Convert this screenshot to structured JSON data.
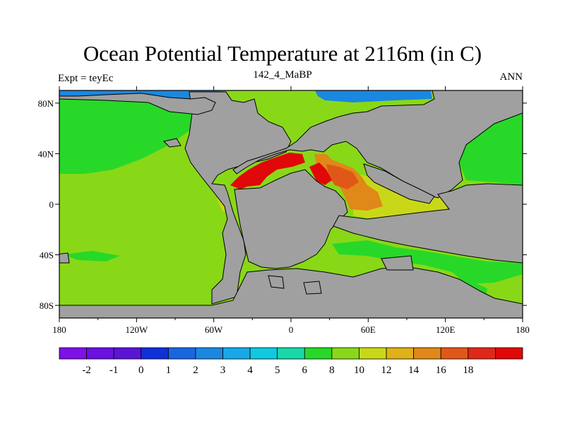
{
  "title": "Ocean Potential Temperature at 2116m (in C)",
  "left_string": "Expt = teyEc",
  "center_string": "142_4_MaBP",
  "right_string": "ANN",
  "x_ticks": [
    {
      "lon": -180,
      "label": "180"
    },
    {
      "lon": -120,
      "label": "120W"
    },
    {
      "lon": -60,
      "label": "60W"
    },
    {
      "lon": 0,
      "label": "0"
    },
    {
      "lon": 60,
      "label": "60E"
    },
    {
      "lon": 120,
      "label": "120E"
    },
    {
      "lon": 180,
      "label": "180"
    }
  ],
  "y_ticks": [
    {
      "lat": 80,
      "label": "80N"
    },
    {
      "lat": 40,
      "label": "40N"
    },
    {
      "lat": 0,
      "label": "0"
    },
    {
      "lat": -40,
      "label": "40S"
    },
    {
      "lat": -80,
      "label": "80S"
    }
  ],
  "colorbar": {
    "colors": [
      "#7f10e8",
      "#6a10e0",
      "#5a14d6",
      "#1030d8",
      "#1a66e0",
      "#1a88e0",
      "#18a8e8",
      "#10c8e0",
      "#18d8a8",
      "#28d828",
      "#88d818",
      "#c8d818",
      "#e0b018",
      "#e08818",
      "#e05818",
      "#e02818",
      "#e00808"
    ],
    "labels": [
      {
        "value": -2,
        "label": "-2"
      },
      {
        "value": -1,
        "label": "-1"
      },
      {
        "value": 0,
        "label": "0"
      },
      {
        "value": 1,
        "label": "1"
      },
      {
        "value": 2,
        "label": "2"
      },
      {
        "value": 3,
        "label": "3"
      },
      {
        "value": 4,
        "label": "4"
      },
      {
        "value": 5,
        "label": "5"
      },
      {
        "value": 6,
        "label": "6"
      },
      {
        "value": 8,
        "label": "8"
      },
      {
        "value": 10,
        "label": "10"
      },
      {
        "value": 12,
        "label": "12"
      },
      {
        "value": 14,
        "label": "14"
      },
      {
        "value": 16,
        "label": "16"
      },
      {
        "value": 18,
        "label": "18"
      }
    ]
  },
  "colors": {
    "land": "#a0a0a0",
    "coast": "#000000",
    "background": "#ffffff"
  }
}
